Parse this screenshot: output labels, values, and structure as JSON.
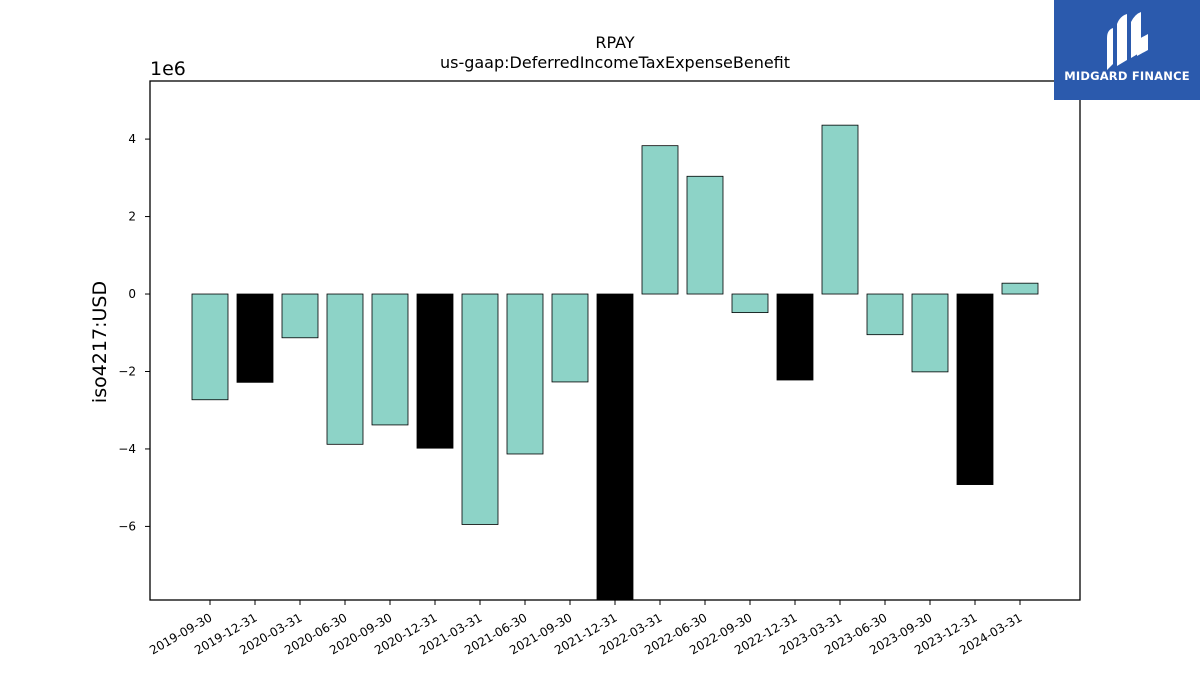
{
  "chart_data": {
    "type": "bar",
    "title": "RPAY",
    "subtitle": "us-gaap:DeferredIncomeTaxExpenseBenefit",
    "ylabel": "iso4217:USD",
    "xlabel": "",
    "scale_label": "1e6",
    "ylim": [
      -7900000,
      5500000
    ],
    "yticks": [
      -6,
      -4,
      -2,
      0,
      2,
      4
    ],
    "grid": false,
    "colors": {
      "quarterly": "#8dd3c7",
      "annual": "#000000"
    },
    "categories": [
      "2019-09-30",
      "2019-12-31",
      "2020-03-31",
      "2020-06-30",
      "2020-09-30",
      "2020-12-31",
      "2021-03-31",
      "2021-06-30",
      "2021-09-30",
      "2021-12-31",
      "2022-03-31",
      "2022-06-30",
      "2022-09-30",
      "2022-12-31",
      "2023-03-31",
      "2023-06-30",
      "2023-09-30",
      "2023-12-31",
      "2024-03-31"
    ],
    "values": [
      -2730000,
      -2280000,
      -1130000,
      -3880000,
      -3380000,
      -3980000,
      -5950000,
      -4130000,
      -2270000,
      -7900000,
      3830000,
      3040000,
      -480000,
      -2220000,
      4360000,
      -1050000,
      -2010000,
      -4920000,
      280000
    ],
    "annual": [
      false,
      true,
      false,
      false,
      false,
      true,
      false,
      false,
      false,
      true,
      false,
      false,
      false,
      true,
      false,
      false,
      false,
      true,
      false
    ]
  },
  "logo": {
    "text": "MIDGARD FINANCE"
  }
}
